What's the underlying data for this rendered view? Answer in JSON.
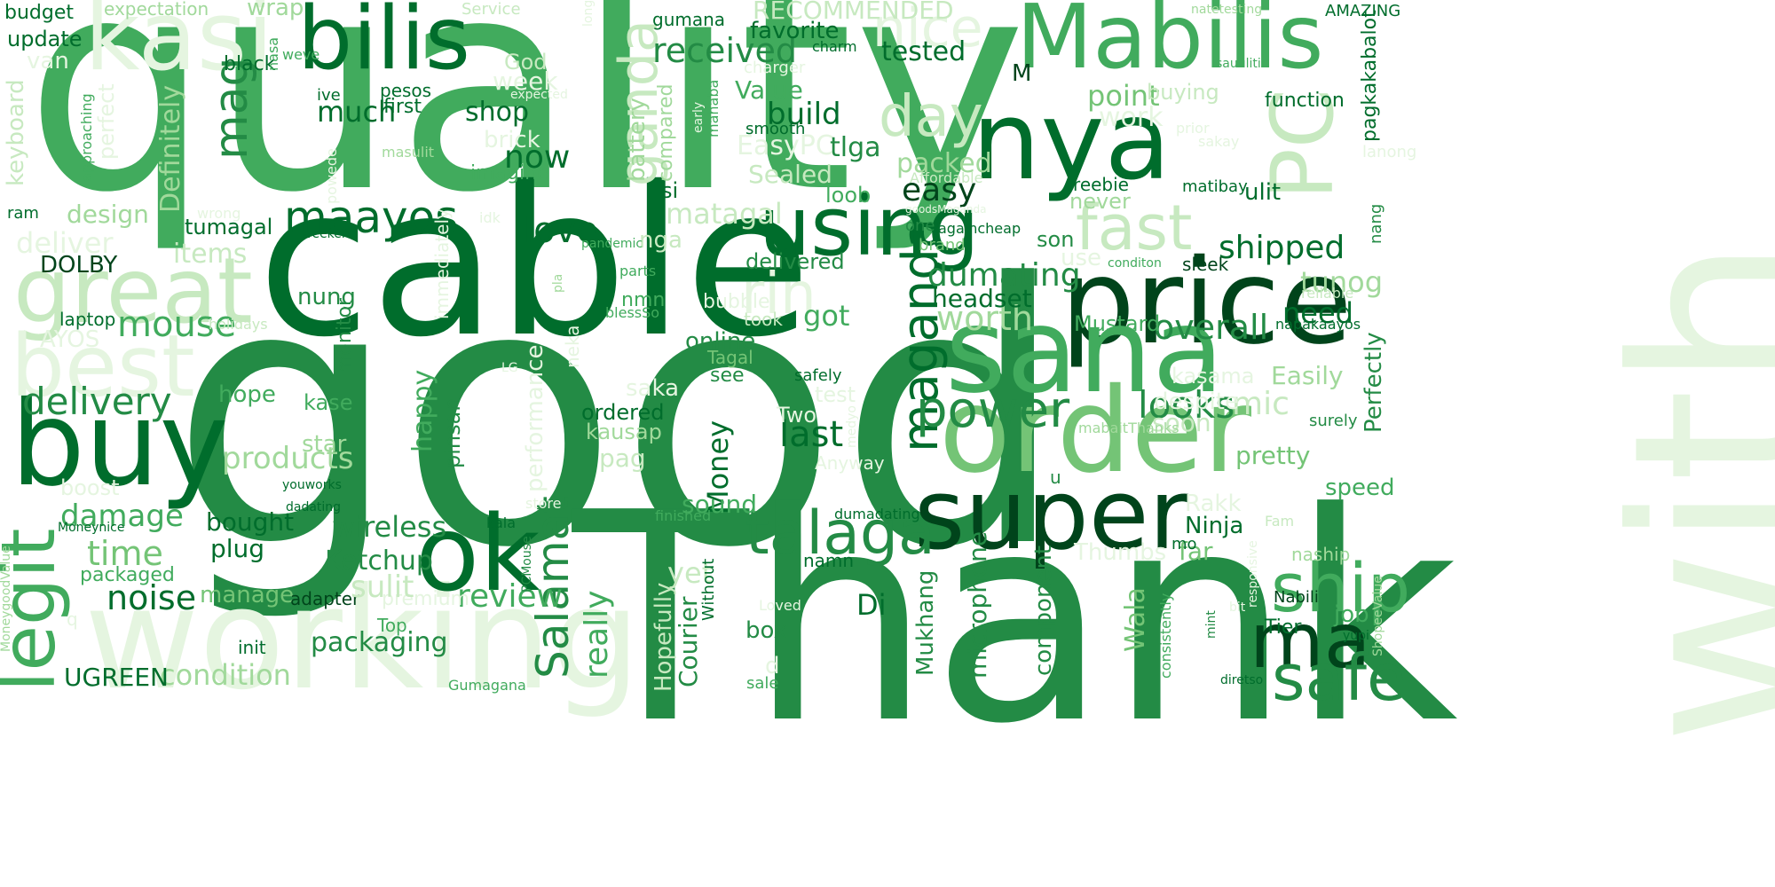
{
  "palette": {
    "darkest": "#00441b",
    "dark": "#006d2c",
    "mid_dark": "#238b45",
    "mid": "#41ab5d",
    "light": "#74c476",
    "lighter": "#a1d99b",
    "pale": "#c7e9c0",
    "palest": "#e5f5e0"
  },
  "words": {
    "good": "good",
    "quality": "quality",
    "thank": "Thank",
    "cable": "cable",
    "buy": "buy",
    "working": "working",
    "with": "with",
    "order": "order",
    "price": "price",
    "sana": "sana",
    "super": "super",
    "nya": "nya",
    "mabilis": "Mabilis",
    "bilis": "bilis",
    "ok": "ok",
    "great": "great",
    "kasi": "kasi",
    "best": "best",
    "legit": "legit",
    "using": "using",
    "talaga": "talaga",
    "pc": "PC",
    "ship": "ship",
    "ma": "ma",
    "safe": "safe",
    "fast": "fast",
    "maganda": "maganda",
    "ganda": "ganda",
    "power": "power",
    "salamat": "Salamat",
    "day": "day",
    "maayos": "maayos",
    "rin": "rin",
    "nice": "nice",
    "delivery": "delivery",
    "mag": "mag",
    "mouse": "mouse",
    "shipped": "shipped",
    "looks": "looks",
    "overall": "overall",
    "worth": "worth",
    "products": "products",
    "damage": "damage",
    "time": "time",
    "noise": "noise",
    "review": "review",
    "really": "really",
    "wireless": "wireless",
    "ketchup": "Ketchup",
    "money": "Money",
    "last": "last",
    "love": "love",
    "now": "now",
    "much": "much",
    "received": "received",
    "shop": "shop",
    "build": "build",
    "easy": "easy",
    "packed": "packed",
    "dumating": "dumating",
    "headset": "headset",
    "need": "need",
    "tunog": "tunog",
    "mic": "mic",
    "easily": "Easily",
    "perfectly": "Perfectly",
    "speed": "speed",
    "ninja": "Ninja",
    "wala": "Wala",
    "microphone": "microphone",
    "component": "component",
    "mukhang": "Mukhang",
    "courier": "Courier",
    "hopefully": "Hopefully",
    "packaging": "packaging",
    "condition": "condition",
    "ugreen": "UGREEN",
    "bought": "bought",
    "plug": "plug",
    "packaged": "packaged",
    "manage": "manage",
    "adapter": "adapter",
    "premium": "premium",
    "sulit": "sulit",
    "boost": "boost",
    "star": "star",
    "pag": "pag",
    "kausap": "kausap",
    "ordered": "ordered",
    "happy": "happy",
    "pinsan": "pinsan",
    "hope": "hope",
    "kase": "kase",
    "saka": "saka",
    "test": "test",
    "see": "see",
    "tagal": "Tagal",
    "online": "online",
    "monitor": "monitor",
    "nung": "nung",
    "got": "got",
    "nmn": "nmn",
    "delivered": "delivered",
    "matagal": "matagal",
    "nga": "nga",
    "tumagal": "tumagal",
    "design": "design",
    "deliver": "deliver",
    "items": "items",
    "dolby": "DOLBY",
    "laptop": "laptop",
    "ayos": "AYOS",
    "definitely": "Definitely",
    "keyboard": "keyboard",
    "ram": "ram",
    "budget": "budget",
    "update": "update",
    "van": "van",
    "expectation": "expectation",
    "wrap": "wrap",
    "recommended": "RECOMMENDED",
    "favorite": "favorite",
    "tested": "tested",
    "value": "Value",
    "point": "point",
    "work": "work",
    "buying": "buying",
    "function": "function",
    "pagkakabalot": "pagkakabalot",
    "amazing": "AMAZING",
    "natetesting": "natetesting",
    "sauulitin": "sauulitin",
    "lanong": "lanong",
    "matibay": "matibay",
    "ulit": "ulit",
    "freebie": "freebie",
    "never": "never",
    "son": "son",
    "use": "use",
    "sleek": "sleek",
    "conditon": "conditon",
    "reliable": "reliable",
    "napakaayos": "napakaayos",
    "nang": "nang",
    "kasama": "kasama",
    "despite": "despite",
    "soon": "soon",
    "pretty": "pretty",
    "surely": "surely",
    "mabaitthanks": "mabaitThanks",
    "rakk": "Rakk",
    "far": "far",
    "thumbs": "Thumbs",
    "mo": "mo",
    "fam": "Fam",
    "naship": "naship",
    "responsive": "responsive",
    "job": "job",
    "nabili": "Nabili",
    "tier": "Tier",
    "yupi": "yupi",
    "shopeevalue": "ShopeeValue",
    "bit": "bit",
    "mint": "mint",
    "consistently": "consistently",
    "diretso": "diretso",
    "u": "u",
    "yet": "yet",
    "without": "Without",
    "box": "box",
    "sale": "sale",
    "d": "d",
    "loved": "Loved",
    "di": "Di",
    "namn": "namn",
    "sound": "sound",
    "finished": "finished",
    "dumadating": "dumadating",
    "medyo": "medyo",
    "anyway": "Anyway",
    "two": "Two",
    "safely": "safely",
    "took": "took",
    "bubble": "bubble",
    "blessso": "blessSo",
    "parts": "parts",
    "pandemic": "pandemic",
    "weekend": "weekend",
    "idk": "idk",
    "immediately": "immediately",
    "pla": "pla",
    "holidays": "holidays",
    "wrong": "wrong",
    "powede": "powede",
    "masulit": "masulit",
    "imagine": "imagine",
    "brick": "brick",
    "week": "week",
    "perfect": "perfect",
    "approaching": "approaching",
    "ive": "ive",
    "pesos": "pesos",
    "first": "first",
    "black": "black",
    "weve": "weve",
    "nasa": "nasa",
    "service": "Service",
    "gumana": "gumana",
    "charm": "charm",
    "charger": "charger",
    "expected": "expected",
    "mahaba": "mahaba",
    "early": "early",
    "compared": "compared",
    "battery": "battery",
    "easypc": "EasyPC",
    "sealed": "Sealed",
    "si": "si",
    "loob": "loob",
    "tlga": "tlga",
    "smooth": "smooth",
    "god": "God",
    "m": "M",
    "affordable": "Affordable",
    "goodsmaganda": "goodsMaganda",
    "one": "one",
    "againcheap": "againcheap",
    "brand": "brand",
    "mustard": "Mustard",
    "lg": "LG",
    "performance": "performance",
    "neka": "neka",
    "store": "store",
    "kala": "kala",
    "pcmouse": "PCMouse",
    "moneynice": "Moneynice",
    "youworks": "youworks",
    "dadating": "dadating",
    "moneygoodvalue": "MoneygoodValue",
    "init": "init",
    "top": "Top",
    "gumagana": "Gumagana",
    "q": "q",
    "long": "long",
    "prior": "prior",
    "saka2": "sakay"
  }
}
